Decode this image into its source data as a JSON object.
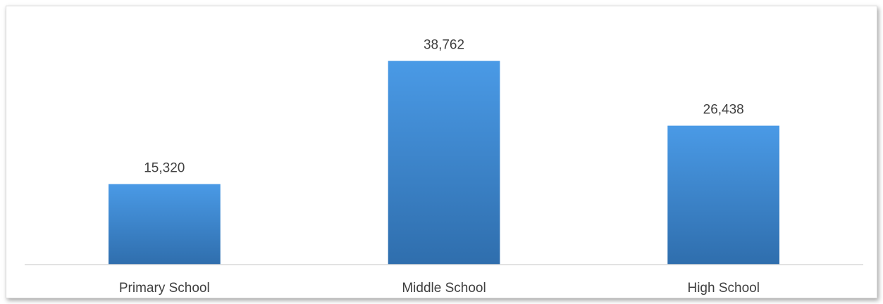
{
  "chart_data": {
    "type": "bar",
    "categories": [
      "Primary School",
      "Middle School",
      "High School"
    ],
    "values": [
      15320,
      38762,
      26438
    ],
    "data_labels": [
      "15,320",
      "38,762",
      "26,438"
    ],
    "title": "",
    "xlabel": "",
    "ylabel": "",
    "ylim": [
      0,
      45000
    ],
    "grid": false,
    "legend": "none",
    "colors": {
      "bar_top": "#4a9ae6",
      "bar_bottom": "#2f6ead",
      "axis": "#d9d9d9",
      "text": "#404040"
    }
  }
}
